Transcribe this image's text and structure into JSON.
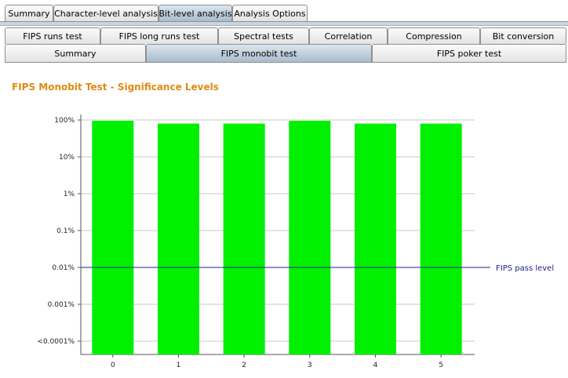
{
  "tabs_main": [
    {
      "label": "Summary",
      "selected": false
    },
    {
      "label": "Character-level analysis",
      "selected": false
    },
    {
      "label": "Bit-level analysis",
      "selected": true
    },
    {
      "label": "Analysis Options",
      "selected": false
    }
  ],
  "tabs_sub_top": [
    {
      "label": "FIPS runs test",
      "selected": false
    },
    {
      "label": "FIPS long runs test",
      "selected": false
    },
    {
      "label": "Spectral tests",
      "selected": false
    },
    {
      "label": "Correlation",
      "selected": false
    },
    {
      "label": "Compression",
      "selected": false
    },
    {
      "label": "Bit conversion",
      "selected": false
    }
  ],
  "tabs_sub_bottom": [
    {
      "label": "Summary",
      "selected": false
    },
    {
      "label": "FIPS monobit test",
      "selected": true
    },
    {
      "label": "FIPS poker test",
      "selected": false
    }
  ],
  "colors": {
    "bar": "#00f000",
    "title": "#e08a12",
    "pass_line": "#20208a",
    "grid": "#c8c8c8"
  },
  "chart_data": {
    "type": "bar",
    "title": "FIPS Monobit Test - Significance Levels",
    "categories": [
      "0",
      "1",
      "2",
      "3",
      "4",
      "5"
    ],
    "values": [
      0.95,
      0.8,
      0.8,
      0.95,
      0.8,
      0.8
    ],
    "y_scale": "log",
    "y_ticks": [
      {
        "label": "100%",
        "value": 1
      },
      {
        "label": "10%",
        "value": 0.1
      },
      {
        "label": "1%",
        "value": 0.01
      },
      {
        "label": "0.1%",
        "value": 0.001
      },
      {
        "label": "0.01%",
        "value": 0.0001
      },
      {
        "label": "0.001%",
        "value": 1e-05
      },
      {
        "label": "<0.0001%",
        "value": 1e-06
      }
    ],
    "ylim": [
      5e-07,
      1
    ],
    "grid": true,
    "reference_line": {
      "value": 0.0001,
      "label": "FIPS pass level"
    }
  }
}
